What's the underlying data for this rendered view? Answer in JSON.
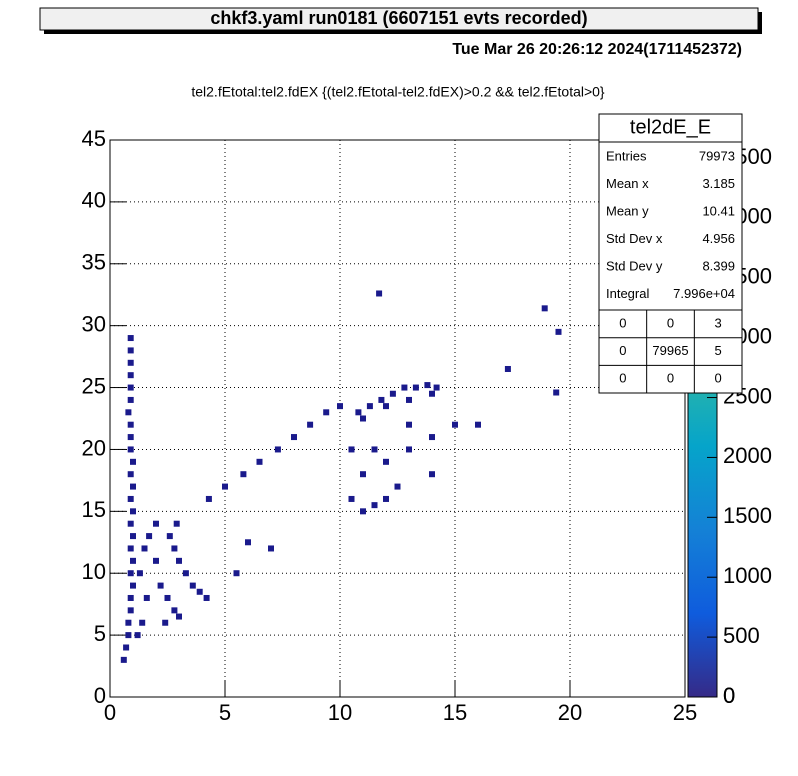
{
  "chart_data": {
    "type": "scatter",
    "title": "chkf3.yaml  run0181 (6607151 evts recorded)",
    "date": "Tue Mar 26 20:26:12 2024(1711452372)",
    "subtitle": "tel2.fEtotal:tel2.fdEX {(tel2.fEtotal-tel2.fdEX)>0.2 && tel2.fEtotal>0}",
    "color": "#1a1a8c",
    "grid": true,
    "xlim": [
      0,
      25
    ],
    "xticks": [
      0,
      5,
      10,
      15,
      20,
      25
    ],
    "ylim": [
      0,
      45
    ],
    "yticks": [
      0,
      5,
      10,
      15,
      20,
      25,
      30,
      35,
      40,
      45
    ],
    "zlim": [
      0,
      4650
    ],
    "zticks": [
      0,
      500,
      1000,
      1500,
      2000,
      2500,
      3000,
      3500,
      4000,
      4500
    ],
    "x": [
      0.6,
      0.7,
      0.8,
      0.8,
      0.9,
      0.9,
      1.0,
      0.9,
      1.0,
      0.9,
      1.0,
      0.9,
      1.0,
      0.9,
      1.0,
      0.9,
      1.0,
      0.9,
      0.9,
      0.9,
      0.8,
      0.9,
      0.9,
      0.9,
      0.9,
      0.9,
      0.9,
      1.3,
      1.5,
      1.7,
      2.0,
      2.2,
      2.5,
      2.8,
      3.0,
      2.6,
      2.8,
      3.0,
      3.3,
      3.6,
      3.9,
      4.2,
      2.4,
      1.6,
      1.4,
      1.2,
      2.0,
      2.9,
      4.3,
      5,
      5.8,
      6.5,
      7.3,
      8,
      8.7,
      9.4,
      10,
      10.8,
      11.3,
      11.8,
      12.3,
      12.8,
      13.3,
      13.8,
      14.2,
      11,
      12,
      13,
      14,
      10.5,
      11,
      11.5,
      12,
      11,
      12,
      13,
      14,
      15,
      16,
      12.5,
      14,
      11.5,
      13,
      10.5,
      11.7,
      18.9,
      19.5,
      17.3,
      19.4,
      6,
      7,
      5.5
    ],
    "y": [
      3,
      4,
      5,
      6,
      7,
      8,
      9,
      10,
      11,
      12,
      13,
      14,
      15,
      16,
      17,
      18,
      19,
      20,
      21,
      22,
      23,
      24,
      25,
      26,
      27,
      28,
      29,
      10,
      12,
      13,
      11,
      9,
      8,
      7,
      6.5,
      13,
      12,
      11,
      10,
      9,
      8.5,
      8,
      6,
      8,
      6,
      5,
      14,
      14,
      16,
      17,
      18,
      19,
      20,
      21,
      22,
      23,
      23.5,
      23,
      23.5,
      24,
      24.5,
      25,
      25,
      25.2,
      25,
      22.5,
      23.5,
      24,
      24.5,
      16,
      15,
      15.5,
      16,
      18,
      19,
      20,
      21,
      22,
      22,
      17,
      18,
      20,
      22,
      20,
      32.6,
      31.4,
      29.5,
      26.5,
      24.6,
      12.5,
      12,
      10
    ],
    "stats": {
      "title": "tel2dE_E",
      "rows": [
        [
          "Entries",
          79973
        ],
        [
          "Mean x",
          3.185
        ],
        [
          "Mean y",
          10.41
        ],
        [
          "Std Dev x",
          4.956
        ],
        [
          "Std Dev y",
          8.399
        ],
        [
          "Integral",
          {
            "value": 79960,
            "label": "7.996e+04"
          }
        ]
      ],
      "grid": [
        [
          0,
          0,
          3
        ],
        [
          0,
          79965,
          5
        ],
        [
          0,
          0,
          0
        ]
      ]
    }
  }
}
